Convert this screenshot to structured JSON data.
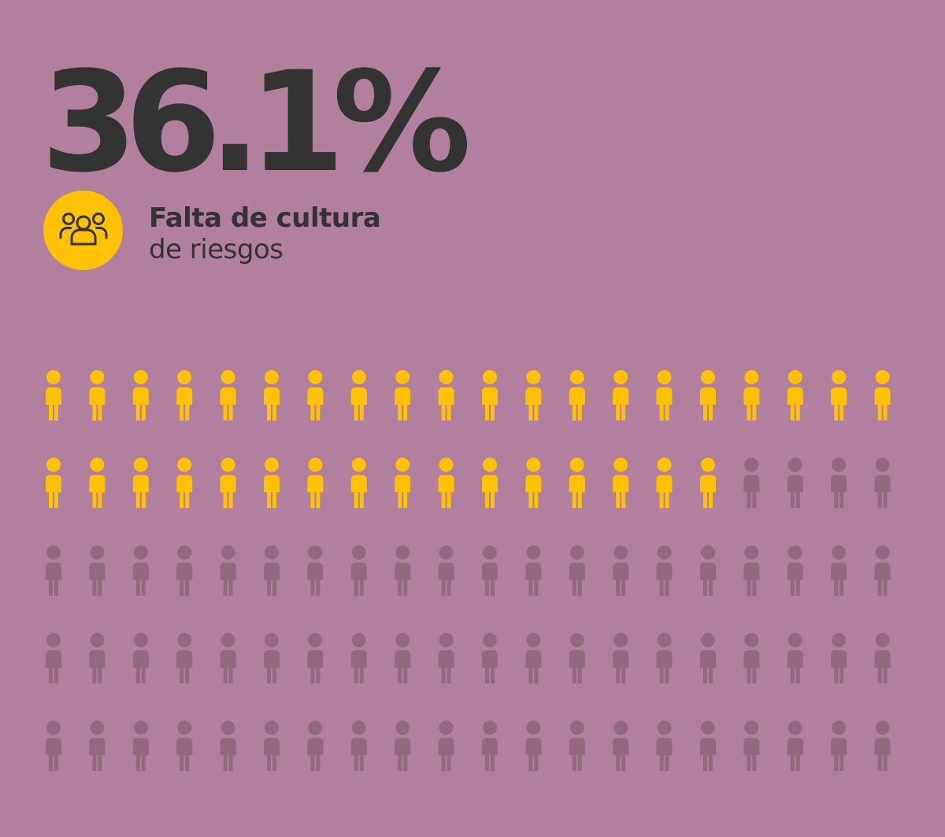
{
  "headline": {
    "value_text": "36.1%"
  },
  "label": {
    "line1": "Falta de cultura",
    "line2": "de riesgos"
  },
  "icons": {
    "badge": "people-group-icon",
    "unit": "person-icon"
  },
  "colors": {
    "background": "#b27f9e",
    "highlight": "#fec106",
    "muted": "#94687f",
    "text": "#333333"
  },
  "chart_data": {
    "type": "pictogram",
    "rows": 5,
    "columns": 20,
    "total_units": 100,
    "highlighted_units": 36,
    "value_percent": 36.1
  }
}
